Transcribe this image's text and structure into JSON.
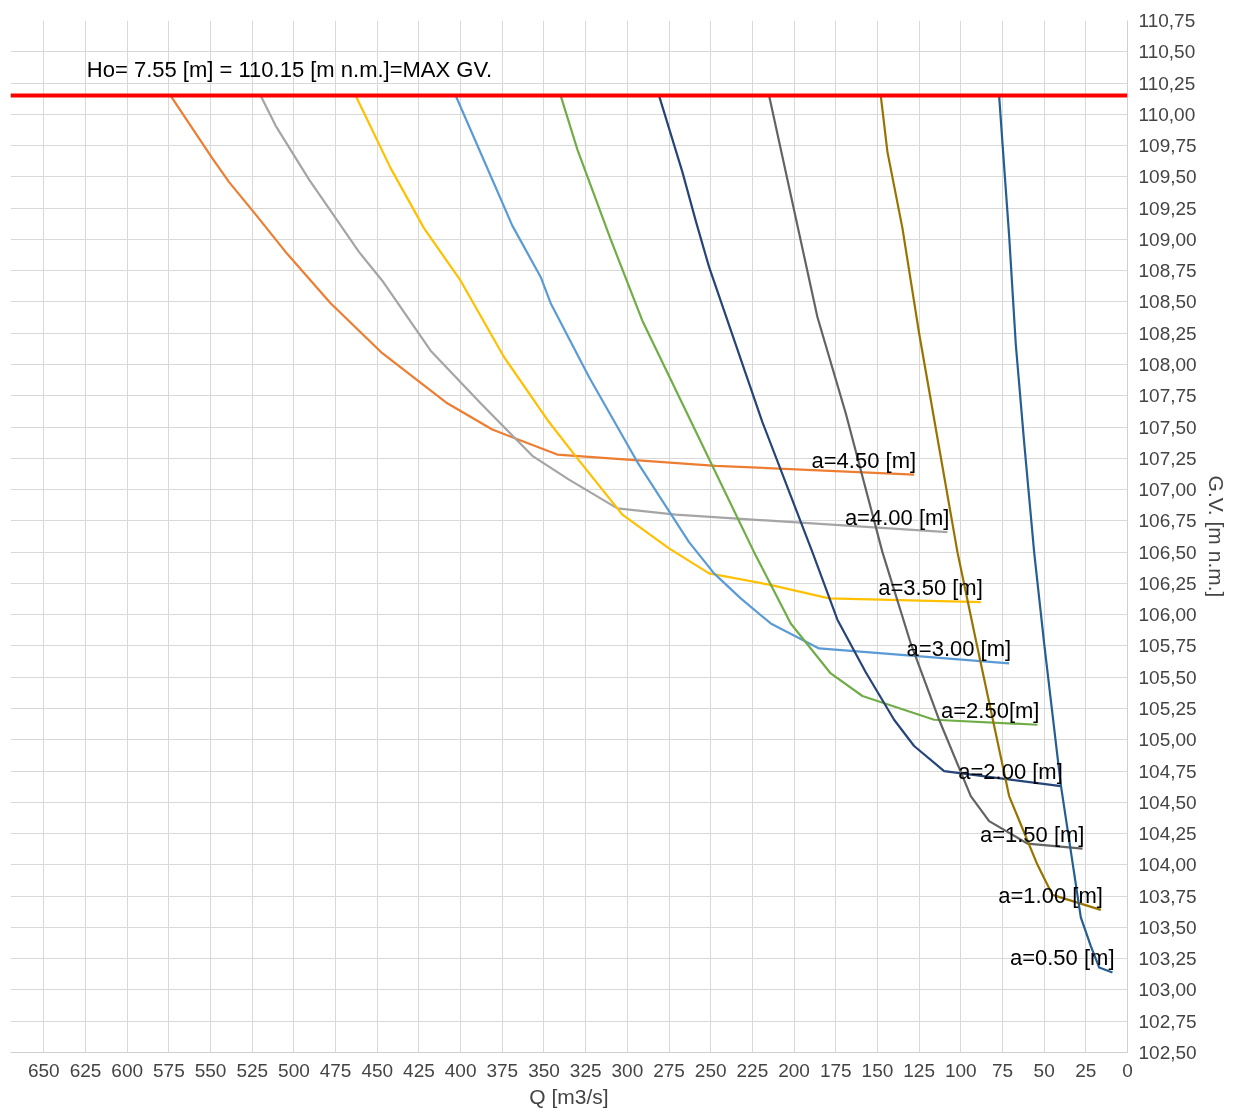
{
  "chart_data": {
    "type": "line",
    "xlabel": "Q [m3/s]",
    "ylabel": "G.V. [m n.m.]",
    "xlim": [
      670,
      0
    ],
    "ylim": [
      102.5,
      110.75
    ],
    "xticks": [
      650,
      625,
      600,
      575,
      550,
      525,
      500,
      475,
      450,
      425,
      400,
      375,
      350,
      325,
      300,
      275,
      250,
      225,
      200,
      175,
      150,
      125,
      100,
      75,
      50,
      25,
      0
    ],
    "yticks": [
      {
        "value": 102.5,
        "label": "102,50"
      },
      {
        "value": 102.75,
        "label": "102,75"
      },
      {
        "value": 103.0,
        "label": "103,00"
      },
      {
        "value": 103.25,
        "label": "103,25"
      },
      {
        "value": 103.5,
        "label": "103,50"
      },
      {
        "value": 103.75,
        "label": "103,75"
      },
      {
        "value": 104.0,
        "label": "104,00"
      },
      {
        "value": 104.25,
        "label": "104,25"
      },
      {
        "value": 104.5,
        "label": "104,50"
      },
      {
        "value": 104.75,
        "label": "104,75"
      },
      {
        "value": 105.0,
        "label": "105,00"
      },
      {
        "value": 105.25,
        "label": "105,25"
      },
      {
        "value": 105.5,
        "label": "105,50"
      },
      {
        "value": 105.75,
        "label": "105,75"
      },
      {
        "value": 106.0,
        "label": "106,00"
      },
      {
        "value": 106.25,
        "label": "106,25"
      },
      {
        "value": 106.5,
        "label": "106,50"
      },
      {
        "value": 106.75,
        "label": "106,75"
      },
      {
        "value": 107.0,
        "label": "107,00"
      },
      {
        "value": 107.25,
        "label": "107,25"
      },
      {
        "value": 107.5,
        "label": "107,50"
      },
      {
        "value": 107.75,
        "label": "107,75"
      },
      {
        "value": 108.0,
        "label": "108,00"
      },
      {
        "value": 108.25,
        "label": "108,25"
      },
      {
        "value": 108.5,
        "label": "108,50"
      },
      {
        "value": 108.75,
        "label": "108,75"
      },
      {
        "value": 109.0,
        "label": "109,00"
      },
      {
        "value": 109.25,
        "label": "109,25"
      },
      {
        "value": 109.5,
        "label": "109,50"
      },
      {
        "value": 109.75,
        "label": "109,75"
      },
      {
        "value": 110.0,
        "label": "110,00"
      },
      {
        "value": 110.25,
        "label": "110,25"
      },
      {
        "value": 110.5,
        "label": "110,50"
      },
      {
        "value": 110.75,
        "label": "110,75"
      }
    ],
    "grid": true,
    "legend": false,
    "marker": "none",
    "line_style": "solid",
    "ref_lines": [
      {
        "axis": "y",
        "value": 110.15,
        "label": "Ho= 7.55 [m] = 110.15 [m n.m.]=MAX GV.",
        "color": "#ff0000"
      }
    ],
    "series": [
      {
        "name": "a=4.50 [m]",
        "color": "#ed7d31",
        "x": [
          574,
          549,
          539,
          523,
          505,
          478,
          447,
          408,
          381,
          342,
          247,
          128
        ],
        "values": [
          110.15,
          109.65,
          109.46,
          109.2,
          108.9,
          108.49,
          108.09,
          107.69,
          107.48,
          107.28,
          107.19,
          107.12
        ]
      },
      {
        "name": "a=4.00 [m]",
        "color": "#a5a5a5",
        "x": [
          520,
          511,
          491,
          461,
          447,
          418,
          388,
          357,
          335,
          306,
          271,
          108
        ],
        "values": [
          110.15,
          109.91,
          109.48,
          108.9,
          108.67,
          108.11,
          107.69,
          107.27,
          107.08,
          106.85,
          106.8,
          106.66
        ]
      },
      {
        "name": "a=3.50 [m]",
        "color": "#ffc000",
        "x": [
          463,
          442,
          422,
          400,
          374,
          347,
          330,
          303,
          275,
          251,
          215,
          179,
          88
        ],
        "values": [
          110.15,
          109.57,
          109.09,
          108.67,
          108.06,
          107.54,
          107.25,
          106.8,
          106.53,
          106.33,
          106.24,
          106.13,
          106.1
        ]
      },
      {
        "name": "a=3.00 [m]",
        "color": "#5b9bd5",
        "x": [
          403,
          369,
          352,
          346,
          323,
          294,
          263,
          248,
          232,
          214,
          185,
          71
        ],
        "values": [
          110.15,
          109.11,
          108.7,
          108.49,
          107.9,
          107.22,
          106.58,
          106.33,
          106.13,
          105.93,
          105.73,
          105.61
        ]
      },
      {
        "name": "a=2.50[m]",
        "color": "#70ad47",
        "x": [
          340,
          330,
          310,
          291,
          224,
          202,
          178,
          159,
          116,
          54
        ],
        "values": [
          110.15,
          109.72,
          109.0,
          108.35,
          106.5,
          105.93,
          105.53,
          105.35,
          105.16,
          105.12
        ]
      },
      {
        "name": "a=2.00 [m]",
        "color": "#264478",
        "x": [
          281,
          267,
          259,
          251,
          219,
          189,
          174,
          157,
          140,
          128,
          110,
          40
        ],
        "values": [
          110.15,
          109.54,
          109.15,
          108.78,
          107.54,
          106.5,
          105.96,
          105.54,
          105.16,
          104.95,
          104.75,
          104.63
        ]
      },
      {
        "name": "a=1.50 [m]",
        "color": "#636363",
        "x": [
          215,
          186,
          169,
          147,
          130,
          113,
          94,
          83,
          60,
          27
        ],
        "values": [
          110.15,
          108.38,
          107.61,
          106.5,
          105.77,
          105.16,
          104.55,
          104.35,
          104.17,
          104.13
        ]
      },
      {
        "name": "a=1.00 [m]",
        "color": "#997300",
        "x": [
          148,
          144,
          135,
          125,
          102,
          91,
          71,
          54,
          45,
          16
        ],
        "values": [
          110.15,
          109.7,
          109.09,
          108.25,
          106.5,
          105.8,
          104.55,
          104.0,
          103.76,
          103.64
        ]
      },
      {
        "name": "a=0.50 [m]",
        "color": "#255e91",
        "x": [
          77,
          75,
          71,
          67,
          62,
          56,
          50,
          40,
          28,
          22,
          17,
          9
        ],
        "values": [
          110.15,
          109.77,
          109.03,
          108.16,
          107.38,
          106.5,
          105.77,
          104.64,
          103.58,
          103.35,
          103.18,
          103.14
        ]
      }
    ]
  }
}
